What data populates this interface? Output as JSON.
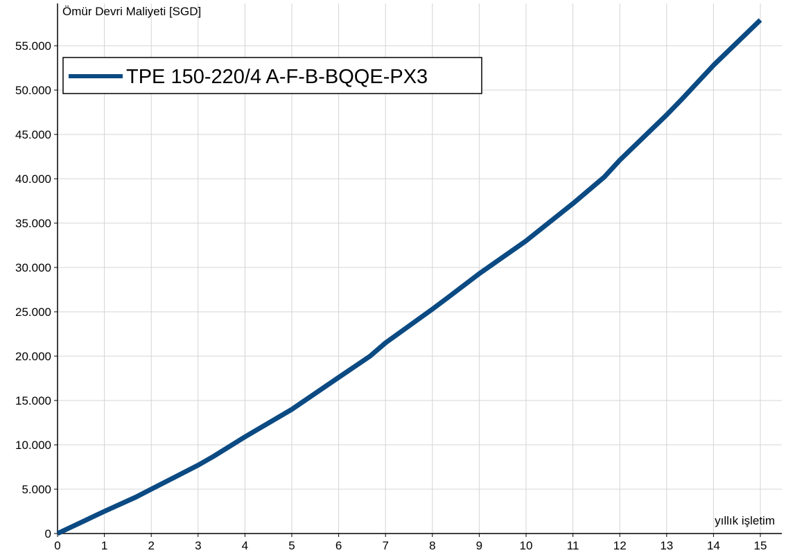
{
  "chart_data": {
    "type": "line",
    "ylabel": "Ömür Devri Maliyeti [SGD]",
    "xlabel": "yıllık işletim",
    "xlim": [
      0,
      15.5
    ],
    "ylim": [
      0,
      59000
    ],
    "x_ticks": [
      0,
      1,
      2,
      3,
      4,
      5,
      6,
      7,
      8,
      9,
      10,
      11,
      12,
      13,
      14,
      15
    ],
    "y_ticks": [
      0,
      5000,
      10000,
      15000,
      20000,
      25000,
      30000,
      35000,
      40000,
      45000,
      50000,
      55000
    ],
    "y_tick_labels": [
      "0",
      "5.000",
      "10.000",
      "15.000",
      "20.000",
      "25.000",
      "30.000",
      "35.000",
      "40.000",
      "45.000",
      "50.000",
      "55.000"
    ],
    "x_tick_labels": [
      "0",
      "1",
      "2",
      "3",
      "4",
      "5",
      "6",
      "7",
      "8",
      "9",
      "10",
      "11",
      "12",
      "13",
      "14",
      "15"
    ],
    "grid": true,
    "legend_position": "top-left",
    "series": [
      {
        "name": "TPE 150-220/4 A-F-B-BQQE-PX3",
        "color": "#0b4a82",
        "x": [
          0,
          1,
          1.67,
          2,
          3,
          3.33,
          4,
          5,
          6,
          6.67,
          7,
          8,
          8.33,
          9,
          10,
          11,
          11.67,
          12,
          13,
          13.33,
          14,
          15
        ],
        "y": [
          0,
          2500,
          4100,
          5000,
          7700,
          8700,
          10900,
          14000,
          17600,
          20000,
          21500,
          25300,
          26600,
          29300,
          33000,
          37200,
          40200,
          42100,
          47200,
          49000,
          52800,
          57900
        ]
      }
    ]
  }
}
